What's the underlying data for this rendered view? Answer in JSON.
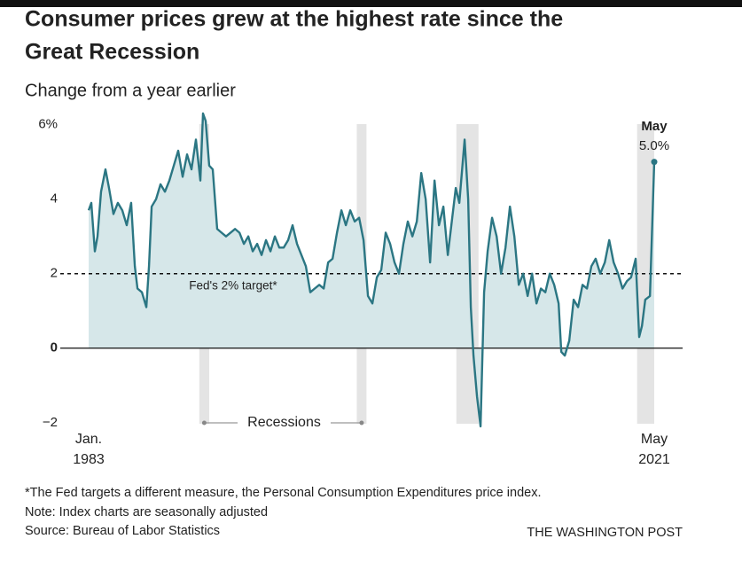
{
  "chart_data": {
    "type": "line",
    "title": [
      "Consumer prices grew at the highest rate since the",
      "Great Recession"
    ],
    "subtitle": "Change from a year earlier",
    "x": [
      1983.0,
      1983.18,
      1983.42,
      1983.6,
      1983.84,
      1984.14,
      1984.38,
      1984.68,
      1984.98,
      1985.28,
      1985.58,
      1985.88,
      1986.13,
      1986.31,
      1986.61,
      1986.91,
      1987.09,
      1987.27,
      1987.57,
      1987.87,
      1988.17,
      1988.47,
      1988.77,
      1989.07,
      1989.37,
      1989.67,
      1989.97,
      1990.27,
      1990.57,
      1990.75,
      1990.93,
      1991.17,
      1991.41,
      1991.71,
      1992.01,
      1992.31,
      1992.62,
      1992.92,
      1993.22,
      1993.52,
      1993.82,
      1994.12,
      1994.42,
      1994.72,
      1995.02,
      1995.32,
      1995.62,
      1995.92,
      1996.22,
      1996.52,
      1996.82,
      1997.12,
      1997.42,
      1997.72,
      1998.02,
      1998.32,
      1998.63,
      1998.93,
      1999.23,
      1999.53,
      1999.83,
      2000.13,
      2000.43,
      2000.73,
      2001.03,
      2001.33,
      2001.63,
      2001.93,
      2002.23,
      2002.53,
      2002.83,
      2003.13,
      2003.43,
      2003.73,
      2004.03,
      2004.33,
      2004.63,
      2004.94,
      2005.24,
      2005.54,
      2005.84,
      2006.14,
      2006.44,
      2006.74,
      2007.04,
      2007.34,
      2007.64,
      2007.88,
      2008.12,
      2008.48,
      2008.72,
      2008.9,
      2009.08,
      2009.32,
      2009.56,
      2009.8,
      2010.04,
      2010.34,
      2010.65,
      2010.95,
      2011.25,
      2011.55,
      2011.85,
      2012.15,
      2012.45,
      2012.75,
      2013.05,
      2013.35,
      2013.65,
      2013.95,
      2014.25,
      2014.55,
      2014.85,
      2015.03,
      2015.27,
      2015.57,
      2015.87,
      2016.17,
      2016.47,
      2016.77,
      2017.07,
      2017.36,
      2017.67,
      2017.98,
      2018.28,
      2018.58,
      2018.88,
      2019.18,
      2019.48,
      2019.76,
      2020.07,
      2020.31,
      2020.5,
      2020.72,
      2021.04,
      2021.33
    ],
    "series": [
      {
        "name": "CPI",
        "color": "#2b7683",
        "fill": "#d6e7e9",
        "values": [
          3.7,
          3.9,
          2.6,
          3.0,
          4.2,
          4.8,
          4.3,
          3.6,
          3.9,
          3.7,
          3.3,
          3.9,
          2.2,
          1.6,
          1.5,
          1.1,
          2.2,
          3.8,
          4.0,
          4.4,
          4.2,
          4.5,
          4.9,
          5.3,
          4.6,
          5.2,
          4.8,
          5.6,
          4.5,
          6.3,
          6.1,
          4.9,
          4.8,
          3.2,
          3.1,
          3.0,
          3.1,
          3.2,
          3.1,
          2.8,
          3.0,
          2.6,
          2.8,
          2.5,
          2.9,
          2.6,
          3.0,
          2.7,
          2.7,
          2.9,
          3.3,
          2.8,
          2.5,
          2.2,
          1.5,
          1.6,
          1.7,
          1.6,
          2.3,
          2.4,
          3.1,
          3.7,
          3.3,
          3.7,
          3.4,
          3.5,
          2.9,
          1.4,
          1.2,
          1.9,
          2.1,
          3.1,
          2.8,
          2.3,
          2.0,
          2.8,
          3.4,
          3.0,
          3.4,
          4.7,
          4.0,
          2.3,
          4.5,
          3.3,
          3.8,
          2.5,
          3.5,
          4.3,
          3.9,
          5.6,
          4.0,
          1.1,
          -0.2,
          -1.3,
          -2.1,
          1.5,
          2.6,
          3.5,
          3.0,
          2.0,
          2.7,
          3.8,
          3.0,
          1.7,
          2.0,
          1.4,
          2.0,
          1.2,
          1.6,
          1.5,
          2.0,
          1.7,
          1.2,
          -0.1,
          -0.2,
          0.2,
          1.3,
          1.1,
          1.7,
          1.6,
          2.2,
          2.4,
          2.0,
          2.3,
          2.9,
          2.3,
          2.0,
          1.6,
          1.8,
          1.9,
          2.4,
          0.3,
          0.6,
          1.3,
          1.4,
          5.0
        ]
      }
    ],
    "xlim": [
      1983,
      2021.33
    ],
    "ylim": [
      -2.1,
      6.3
    ],
    "yticks": [
      {
        "value": 6,
        "label": "6%"
      },
      4,
      2,
      0,
      {
        "value": -2,
        "label": "−2"
      }
    ],
    "grid": false,
    "x_start_label": [
      "Jan.",
      "1983"
    ],
    "x_end_label": [
      "May",
      "2021"
    ],
    "last_point_label": "May",
    "last_value_label": "5.0%",
    "target": {
      "value": 2,
      "label": "Fed's 2% target*"
    },
    "recessions": {
      "label": "Recessions",
      "color": "#e4e4e4",
      "periods": [
        [
          1990.5,
          1991.17
        ],
        [
          2001.17,
          2001.83
        ],
        [
          2007.92,
          2009.42
        ],
        [
          2020.17,
          2021.33
        ]
      ]
    },
    "notes": [
      "*The Fed targets a different measure, the Personal Consumption Expenditures price index.",
      "Note: Index charts are seasonally adjusted",
      "Source: Bureau of Labor Statistics"
    ],
    "credit": "THE WASHINGTON POST"
  }
}
